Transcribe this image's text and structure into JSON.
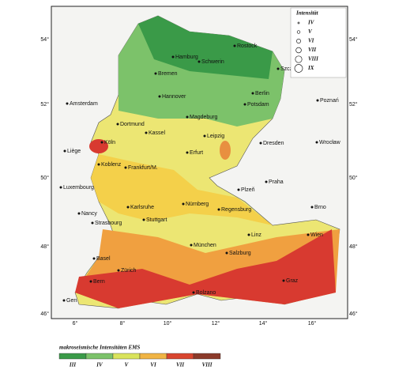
{
  "map": {
    "cities": [
      "Hamburg",
      "Rostock",
      "Schwerin",
      "Szczecin",
      "Bremen",
      "Amsterdam",
      "Hannover",
      "Berlin",
      "Potsdam",
      "Poznań",
      "Dortmund",
      "Kassel",
      "Magdeburg",
      "Leipzig",
      "Dresden",
      "Wrocław",
      "Liège",
      "Köln",
      "Erfurt",
      "Koblenz",
      "Frankfurt/M.",
      "Luxembourg",
      "Praha",
      "Plzeň",
      "Nürnberg",
      "Regensburg",
      "Karlsruhe",
      "Nancy",
      "Strasbourg",
      "Stuttgart",
      "Brno",
      "Linz",
      "Wien",
      "München",
      "Salzburg",
      "Basel",
      "Zürich",
      "Bern",
      "Graz",
      "Bolzano",
      "Gen"
    ],
    "latitude_labels": [
      "54°",
      "52°",
      "50°",
      "48°",
      "46°"
    ],
    "longitude_labels": [
      "6°",
      "8°",
      "10°",
      "12°",
      "14°",
      "16°"
    ],
    "legend": {
      "title": "Intensität",
      "items": [
        "IV",
        "V",
        "VI",
        "VII",
        "VIII",
        "IX"
      ]
    },
    "scale": {
      "title": "makroseismische Intensitäten EMS",
      "labels": [
        "III",
        "IV",
        "V",
        "VI",
        "VII",
        "VIII"
      ],
      "colors": [
        "#3a9a48",
        "#7cc26a",
        "#d9e35c",
        "#f0b444",
        "#d8452f",
        "#8b3a2a"
      ]
    }
  }
}
